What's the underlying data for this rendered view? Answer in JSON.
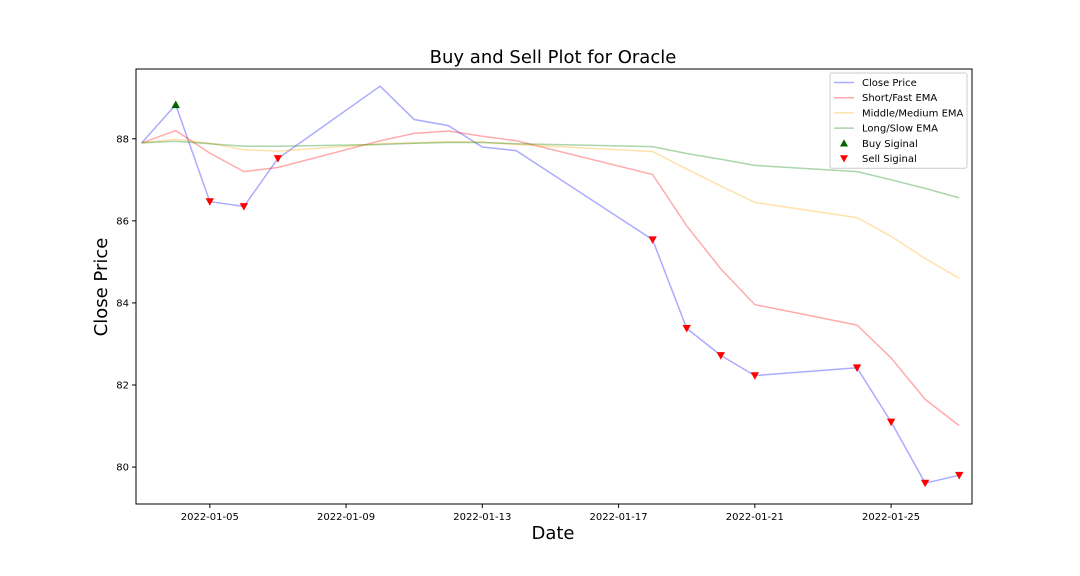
{
  "chart_data": {
    "type": "line",
    "title": "Buy and Sell Plot for Oracle",
    "xlabel": "Date",
    "ylabel": "Close Price",
    "x_tick_labels": [
      "2022-01-05",
      "2022-01-09",
      "2022-01-13",
      "2022-01-17",
      "2022-01-21",
      "2022-01-25"
    ],
    "y_ticks": [
      80,
      82,
      84,
      86,
      88
    ],
    "xlim": [
      "2022-01-02T20:00",
      "2022-01-27T09:00"
    ],
    "ylim": [
      79.1,
      89.7
    ],
    "dates": [
      "2022-01-03",
      "2022-01-04",
      "2022-01-05",
      "2022-01-06",
      "2022-01-07",
      "2022-01-10",
      "2022-01-11",
      "2022-01-12",
      "2022-01-13",
      "2022-01-14",
      "2022-01-18",
      "2022-01-19",
      "2022-01-20",
      "2022-01-21",
      "2022-01-24",
      "2022-01-25",
      "2022-01-26",
      "2022-01-27"
    ],
    "series": [
      {
        "name": "Close Price",
        "color": "#0000ff",
        "opacity": 0.33,
        "values": [
          87.9,
          88.83,
          86.47,
          86.35,
          87.52,
          89.28,
          88.47,
          88.32,
          87.8,
          87.71,
          85.54,
          83.38,
          82.72,
          82.23,
          82.42,
          81.1,
          79.61,
          79.8
        ]
      },
      {
        "name": "Short/Fast EMA",
        "color": "#ff0000",
        "opacity": 0.33,
        "values": [
          87.9,
          88.2,
          87.65,
          87.2,
          87.3,
          87.95,
          88.13,
          88.19,
          88.06,
          87.95,
          87.13,
          85.88,
          84.83,
          83.96,
          83.46,
          82.66,
          81.65,
          81.01
        ]
      },
      {
        "name": "Middle/Medium EMA",
        "color": "#ffa500",
        "opacity": 0.33,
        "values": [
          87.9,
          87.99,
          87.89,
          87.73,
          87.7,
          87.88,
          87.9,
          87.93,
          87.92,
          87.86,
          87.69,
          87.26,
          86.85,
          86.45,
          86.08,
          85.62,
          85.08,
          84.6
        ]
      },
      {
        "name": "Long/Slow EMA",
        "color": "#008000",
        "opacity": 0.33,
        "values": [
          87.9,
          87.94,
          87.88,
          87.82,
          87.82,
          87.86,
          87.89,
          87.91,
          87.91,
          87.88,
          87.81,
          87.64,
          87.5,
          87.35,
          87.2,
          87.0,
          86.79,
          86.56
        ]
      }
    ],
    "buy_signals": {
      "name": "Buy Siginal",
      "color": "#006400",
      "points": [
        {
          "date": "2022-01-04",
          "value": 88.83
        }
      ]
    },
    "sell_signals": {
      "name": "Sell Siginal",
      "color": "#ff0000",
      "points": [
        {
          "date": "2022-01-05",
          "value": 86.47
        },
        {
          "date": "2022-01-06",
          "value": 86.35
        },
        {
          "date": "2022-01-07",
          "value": 87.52
        },
        {
          "date": "2022-01-18",
          "value": 85.54
        },
        {
          "date": "2022-01-19",
          "value": 83.38
        },
        {
          "date": "2022-01-20",
          "value": 82.72
        },
        {
          "date": "2022-01-21",
          "value": 82.23
        },
        {
          "date": "2022-01-24",
          "value": 82.42
        },
        {
          "date": "2022-01-25",
          "value": 81.1
        },
        {
          "date": "2022-01-26",
          "value": 79.61
        },
        {
          "date": "2022-01-27",
          "value": 79.8
        }
      ]
    },
    "legend_position": "top-right",
    "grid": false
  }
}
